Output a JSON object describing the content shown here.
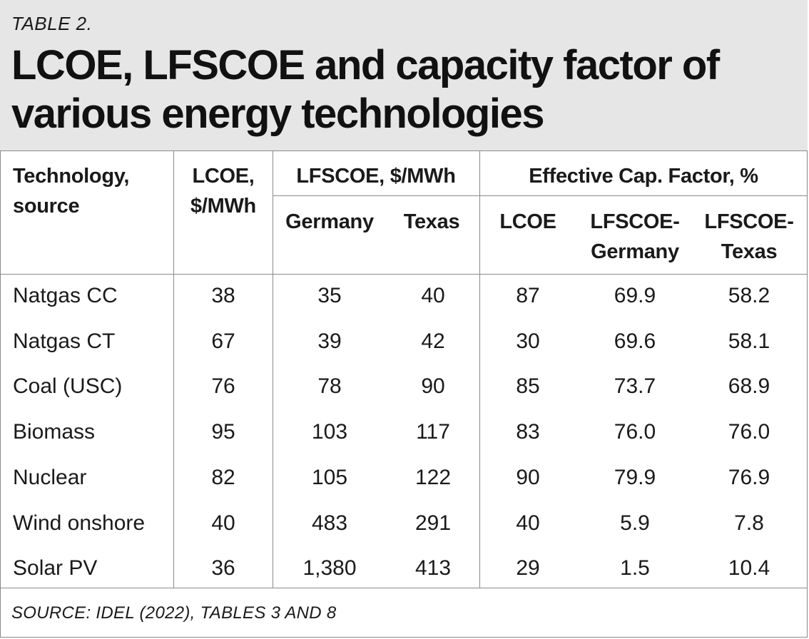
{
  "table_label": "TABLE 2.",
  "title_line1": "LCOE, LFSCOE and capacity factor of",
  "title_line2": "various energy technologies",
  "headers": {
    "technology_1": "Technology,",
    "technology_2": "source",
    "lcoe_1": "LCOE,",
    "lcoe_2": "$/MWh",
    "lfscoe": "LFSCOE, $/MWh",
    "germany": "Germany",
    "texas": "Texas",
    "eff_cap": "Effective Cap. Factor, %",
    "cf_lcoe": "LCOE",
    "cf_de_1": "LFSCOE-",
    "cf_de_2": "Germany",
    "cf_tx_1": "LFSCOE-",
    "cf_tx_2": "Texas"
  },
  "rows": [
    {
      "tech": "Natgas CC",
      "lcoe": "38",
      "de": "35",
      "tx": "40",
      "cf_lcoe": "87",
      "cf_de": "69.9",
      "cf_tx": "58.2"
    },
    {
      "tech": "Natgas CT",
      "lcoe": "67",
      "de": "39",
      "tx": "42",
      "cf_lcoe": "30",
      "cf_de": "69.6",
      "cf_tx": "58.1"
    },
    {
      "tech": "Coal (USC)",
      "lcoe": "76",
      "de": "78",
      "tx": "90",
      "cf_lcoe": "85",
      "cf_de": "73.7",
      "cf_tx": "68.9"
    },
    {
      "tech": "Biomass",
      "lcoe": "95",
      "de": "103",
      "tx": "117",
      "cf_lcoe": "83",
      "cf_de": "76.0",
      "cf_tx": "76.0"
    },
    {
      "tech": "Nuclear",
      "lcoe": "82",
      "de": "105",
      "tx": "122",
      "cf_lcoe": "90",
      "cf_de": "79.9",
      "cf_tx": "76.9"
    },
    {
      "tech": "Wind onshore",
      "lcoe": "40",
      "de": "483",
      "tx": "291",
      "cf_lcoe": "40",
      "cf_de": "5.9",
      "cf_tx": "7.8"
    },
    {
      "tech": "Solar PV",
      "lcoe": "36",
      "de": "1,380",
      "tx": "413",
      "cf_lcoe": "29",
      "cf_de": "1.5",
      "cf_tx": "10.4"
    }
  ],
  "footer": "SOURCE: IDEL (2022), TABLES 3 AND 8"
}
